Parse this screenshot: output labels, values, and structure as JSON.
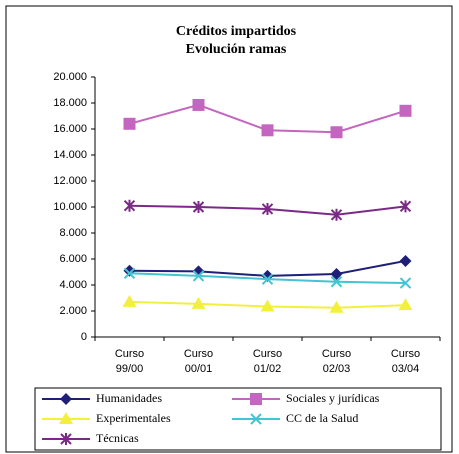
{
  "chart_data": {
    "type": "line",
    "title": [
      "Créditos impartidos",
      "Evolución ramas"
    ],
    "categories": [
      [
        "Curso",
        "99/00"
      ],
      [
        "Curso",
        "00/01"
      ],
      [
        "Curso",
        "01/02"
      ],
      [
        "Curso",
        "02/03"
      ],
      [
        "Curso",
        "03/04"
      ]
    ],
    "ylim": [
      0,
      20000
    ],
    "yticks": [
      0,
      {
        "value": 2000,
        "label": "2.000"
      },
      {
        "value": 4000,
        "label": "4.000"
      },
      {
        "value": 6000,
        "label": "6.000"
      },
      {
        "value": 8000,
        "label": "8.000"
      },
      {
        "value": 10000,
        "label": "10.000"
      },
      {
        "value": 12000,
        "label": "12.000"
      },
      {
        "value": 14000,
        "label": "14.000"
      },
      {
        "value": 16000,
        "label": "16.000"
      },
      {
        "value": 18000,
        "label": "18.000"
      },
      {
        "value": 20000,
        "label": "20.000"
      }
    ],
    "legend": "bottom",
    "series": [
      {
        "name": "Humanidades",
        "color": "#1f1f78",
        "marker": "diamond",
        "values": [
          5100,
          5050,
          4700,
          4850,
          5850
        ]
      },
      {
        "name": "Sociales y jurídicas",
        "color": "#c466bf",
        "marker": "square",
        "values": [
          16400,
          17850,
          15900,
          15750,
          17400
        ]
      },
      {
        "name": "Experimentales",
        "color": "#f2f03c",
        "marker": "triangle",
        "values": [
          2700,
          2550,
          2350,
          2250,
          2450
        ]
      },
      {
        "name": "CC de la Salud",
        "color": "#45c3d2",
        "marker": "x",
        "values": [
          4900,
          4700,
          4450,
          4250,
          4150
        ]
      },
      {
        "name": "Técnicas",
        "color": "#7a2a86",
        "marker": "asterisk",
        "values": [
          10100,
          10000,
          9850,
          9400,
          10050
        ]
      }
    ]
  }
}
